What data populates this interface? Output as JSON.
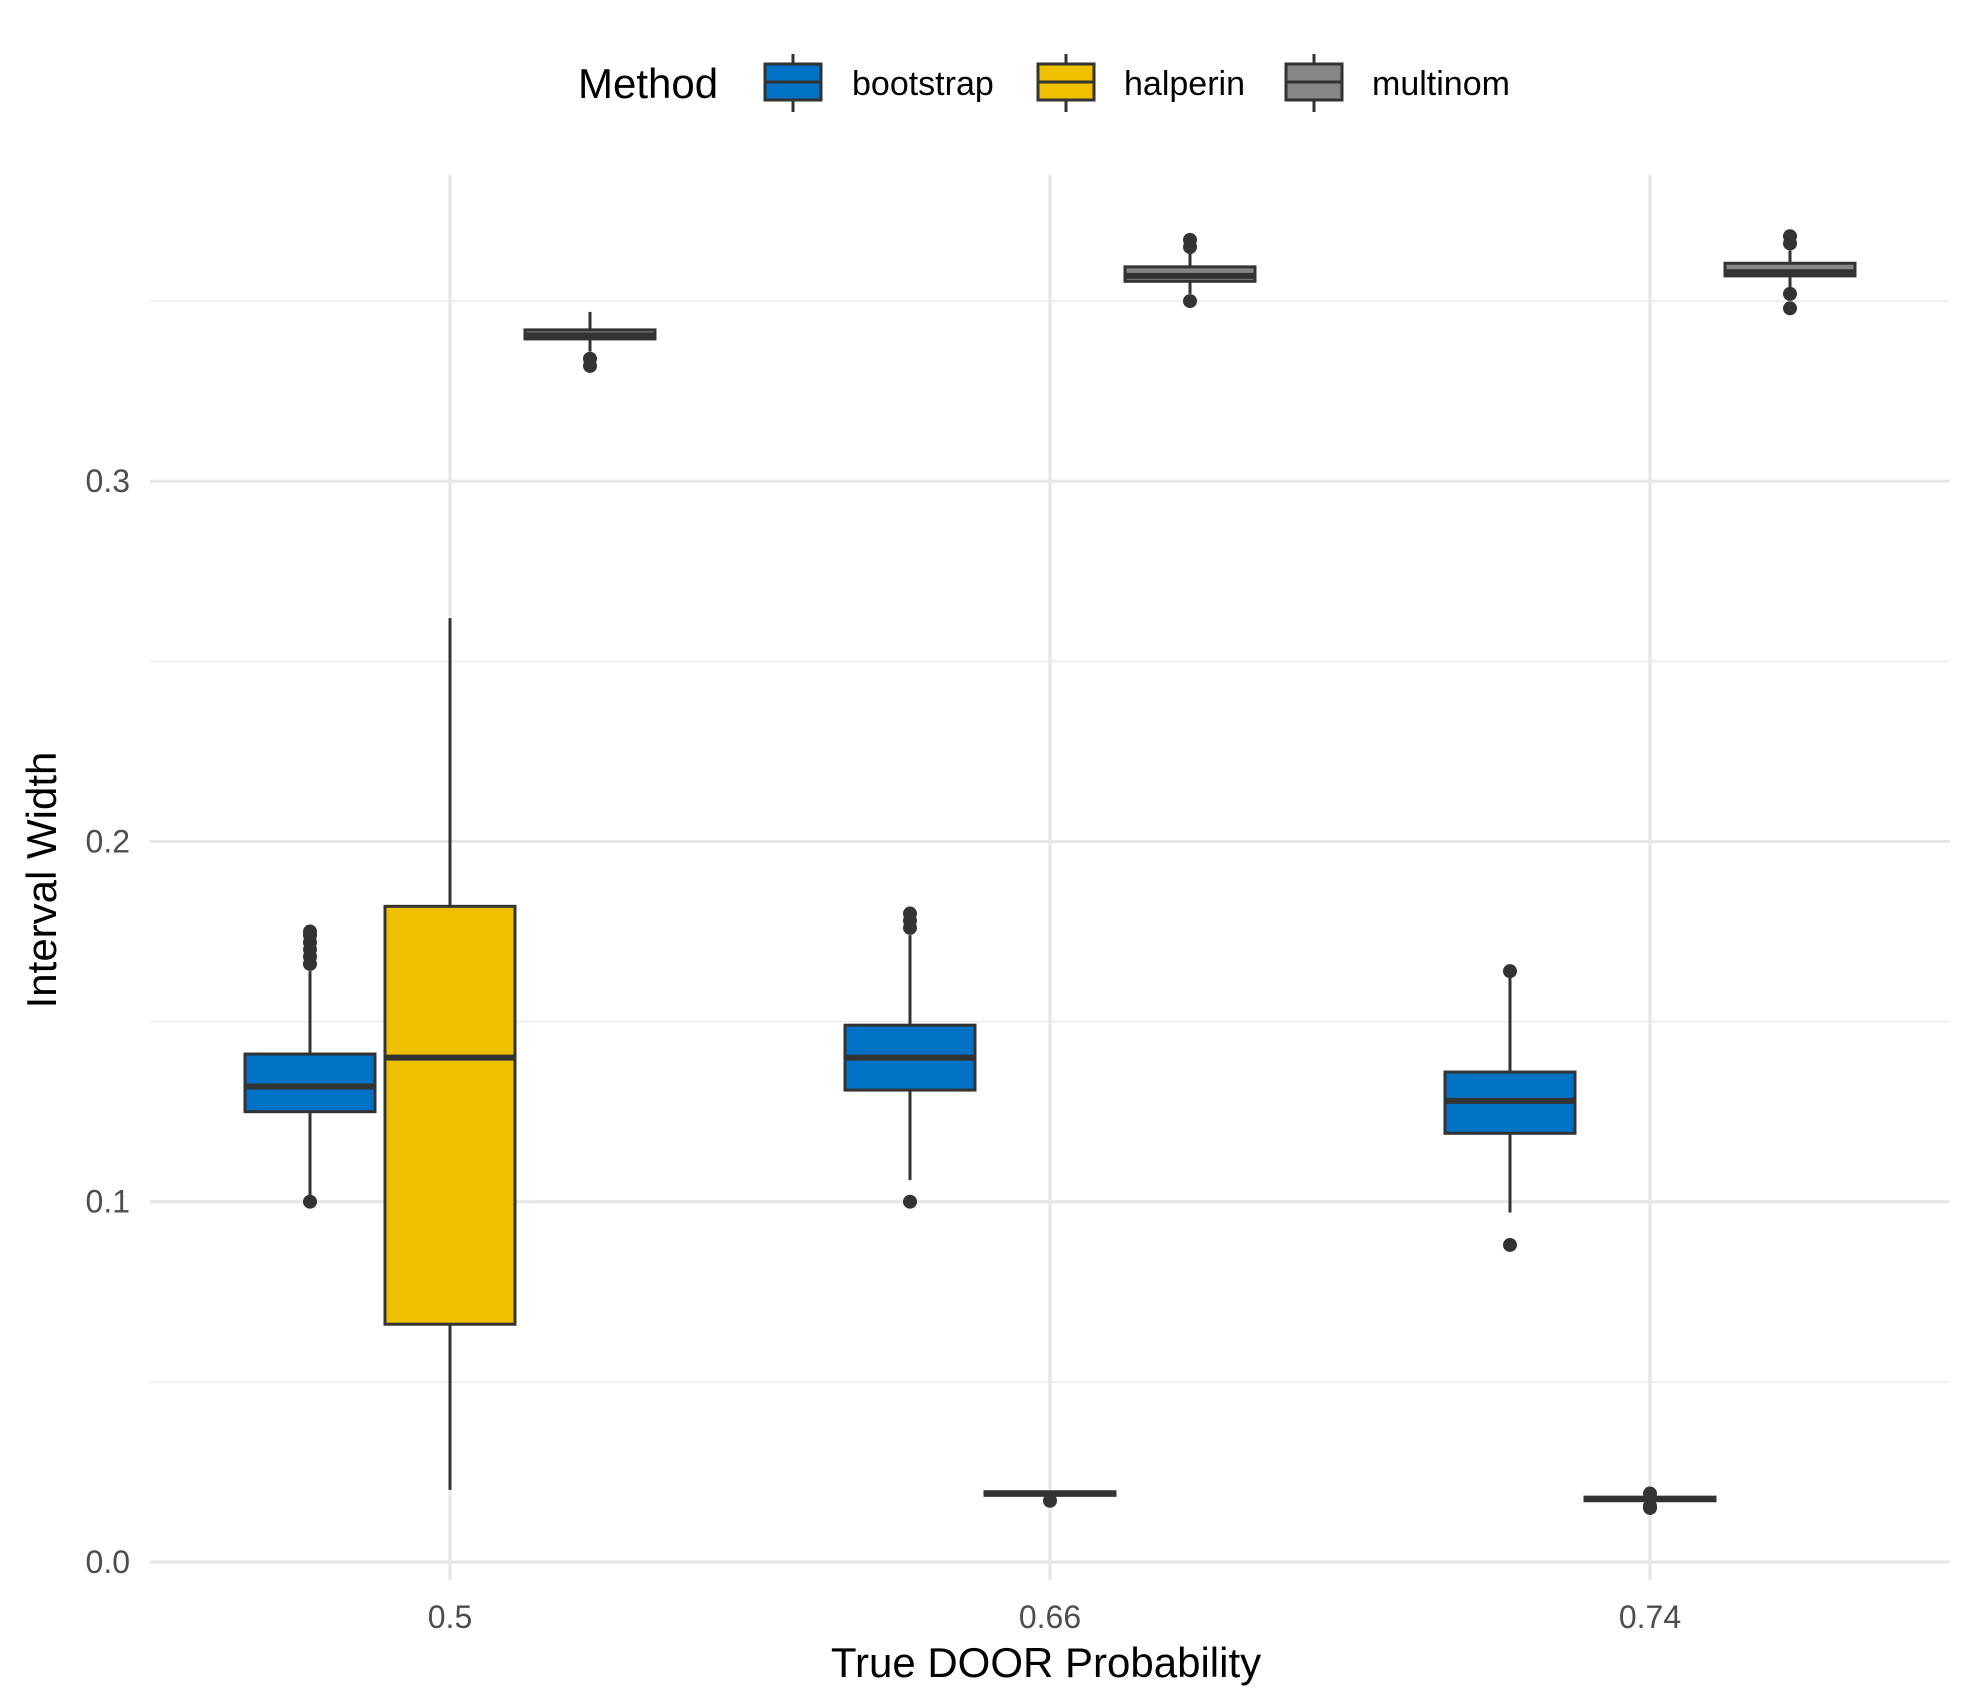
{
  "chart_data": {
    "type": "box",
    "title": "",
    "xlabel": "True DOOR Probability",
    "ylabel": "Interval Width",
    "categories": [
      "0.5",
      "0.66",
      "0.74"
    ],
    "ylim": [
      -0.005,
      0.385
    ],
    "yticks": [
      0.0,
      0.1,
      0.2,
      0.3
    ],
    "ytick_labels": [
      "0.0",
      "0.1",
      "0.2",
      "0.3"
    ],
    "grid": true,
    "legend": {
      "title": "Method",
      "position": "top",
      "entries": [
        "bootstrap",
        "halperin",
        "multinom"
      ]
    },
    "series": [
      {
        "name": "bootstrap",
        "color": "#0072C6",
        "boxes": [
          {
            "category": "0.5",
            "min": 0.1,
            "q1": 0.125,
            "median": 0.132,
            "q3": 0.141,
            "max": 0.164,
            "outliers": [
              0.1,
              0.166,
              0.168,
              0.17,
              0.172,
              0.174,
              0.175
            ]
          },
          {
            "category": "0.66",
            "min": 0.106,
            "q1": 0.131,
            "median": 0.14,
            "q3": 0.149,
            "max": 0.174,
            "outliers": [
              0.1,
              0.176,
              0.178,
              0.18
            ]
          },
          {
            "category": "0.74",
            "min": 0.097,
            "q1": 0.119,
            "median": 0.128,
            "q3": 0.136,
            "max": 0.164,
            "outliers": [
              0.088,
              0.164
            ]
          }
        ]
      },
      {
        "name": "halperin",
        "color": "#EFC000",
        "boxes": [
          {
            "category": "0.5",
            "min": 0.02,
            "q1": 0.066,
            "median": 0.14,
            "q3": 0.182,
            "max": 0.262,
            "outliers": []
          },
          {
            "category": "0.66",
            "min": 0.018,
            "q1": 0.0185,
            "median": 0.019,
            "q3": 0.0195,
            "max": 0.0198,
            "outliers": [
              0.017
            ]
          },
          {
            "category": "0.74",
            "min": 0.0165,
            "q1": 0.017,
            "median": 0.0175,
            "q3": 0.018,
            "max": 0.0185,
            "outliers": [
              0.015,
              0.0155,
              0.019
            ]
          }
        ]
      },
      {
        "name": "multinom",
        "color": "#868686",
        "boxes": [
          {
            "category": "0.5",
            "min": 0.336,
            "q1": 0.3395,
            "median": 0.3405,
            "q3": 0.342,
            "max": 0.347,
            "outliers": [
              0.332,
              0.334
            ]
          },
          {
            "category": "0.66",
            "min": 0.352,
            "q1": 0.3555,
            "median": 0.357,
            "q3": 0.3595,
            "max": 0.364,
            "outliers": [
              0.35,
              0.365,
              0.367
            ]
          },
          {
            "category": "0.74",
            "min": 0.353,
            "q1": 0.357,
            "median": 0.358,
            "q3": 0.3605,
            "max": 0.364,
            "outliers": [
              0.348,
              0.352,
              0.366,
              0.368
            ]
          }
        ]
      }
    ]
  }
}
